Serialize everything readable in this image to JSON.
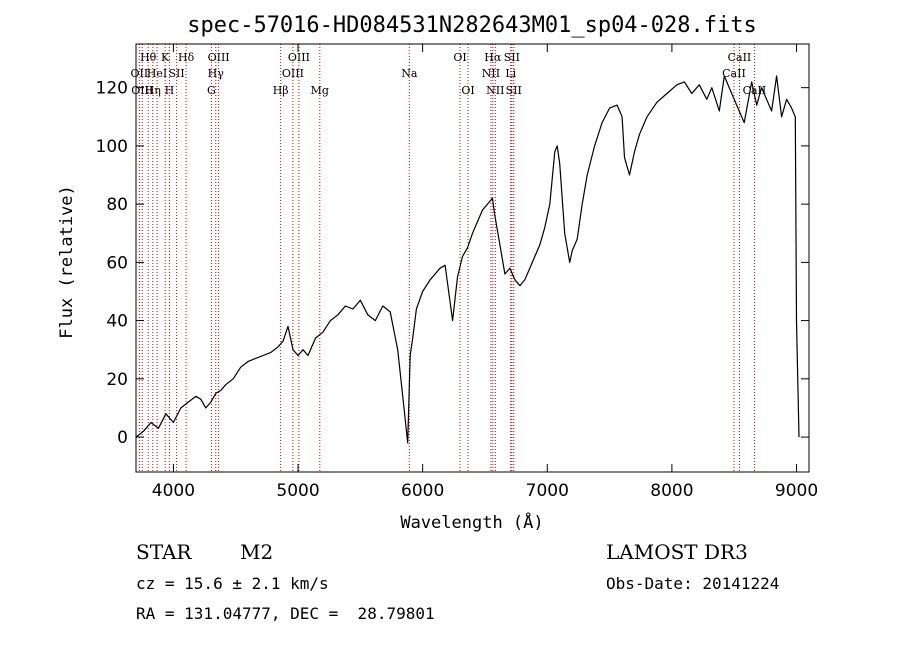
{
  "chart_data": {
    "type": "line",
    "title": "spec-57016-HD084531N282643M01_sp04-028.fits",
    "xlabel": "Wavelength (Å)",
    "ylabel": "Flux (relative)",
    "xlim": [
      3700,
      9100
    ],
    "ylim": [
      -12,
      135
    ],
    "xticks": [
      4000,
      5000,
      6000,
      7000,
      8000,
      9000
    ],
    "yticks": [
      0,
      20,
      40,
      60,
      80,
      100,
      120
    ],
    "line_color": "#000000",
    "marker_color": "#cc0000",
    "series": [
      {
        "name": "spectrum",
        "x": [
          3700,
          3760,
          3820,
          3880,
          3940,
          4000,
          4060,
          4120,
          4180,
          4220,
          4260,
          4300,
          4340,
          4380,
          4420,
          4480,
          4540,
          4600,
          4660,
          4720,
          4780,
          4840,
          4880,
          4920,
          4960,
          5000,
          5040,
          5080,
          5140,
          5200,
          5260,
          5320,
          5380,
          5440,
          5500,
          5560,
          5620,
          5680,
          5740,
          5800,
          5850,
          5880,
          5900,
          5920,
          5950,
          6000,
          6060,
          6100,
          6140,
          6180,
          6240,
          6280,
          6320,
          6360,
          6400,
          6440,
          6480,
          6520,
          6560,
          6580,
          6620,
          6660,
          6700,
          6740,
          6780,
          6820,
          6860,
          6900,
          6940,
          6980,
          7020,
          7060,
          7080,
          7100,
          7140,
          7180,
          7200,
          7240,
          7280,
          7320,
          7380,
          7440,
          7500,
          7560,
          7600,
          7620,
          7660,
          7700,
          7740,
          7800,
          7880,
          7960,
          8040,
          8100,
          8160,
          8220,
          8280,
          8320,
          8380,
          8420,
          8480,
          8540,
          8580,
          8640,
          8680,
          8720,
          8760,
          8800,
          8840,
          8880,
          8920,
          8960,
          8990,
          9000,
          9020
        ],
        "values": [
          0,
          2,
          5,
          3,
          8,
          5,
          10,
          12,
          14,
          13,
          10,
          12,
          15,
          16,
          18,
          20,
          24,
          26,
          27,
          28,
          29,
          31,
          33,
          38,
          30,
          28,
          30,
          28,
          34,
          36,
          40,
          42,
          45,
          44,
          47,
          42,
          40,
          45,
          43,
          30,
          10,
          -2,
          28,
          34,
          44,
          50,
          54,
          56,
          58,
          59,
          40,
          55,
          62,
          65,
          70,
          74,
          78,
          80,
          82,
          76,
          66,
          56,
          58,
          54,
          52,
          54,
          58,
          62,
          66,
          72,
          80,
          98,
          100,
          94,
          70,
          60,
          64,
          68,
          80,
          90,
          100,
          108,
          113,
          114,
          110,
          96,
          90,
          98,
          104,
          110,
          115,
          118,
          121,
          122,
          118,
          121,
          116,
          120,
          112,
          124,
          118,
          112,
          108,
          122,
          114,
          120,
          116,
          112,
          124,
          110,
          116,
          113,
          110,
          40,
          0
        ]
      }
    ],
    "emission_lines": [
      {
        "wavelength": 3727,
        "label": "OII",
        "row": 1
      },
      {
        "wavelength": 3750,
        "label": "OIII",
        "row": 2
      },
      {
        "wavelength": 3798,
        "label": "Hθ",
        "row": 0
      },
      {
        "wavelength": 3835,
        "label": "Hη",
        "row": 2
      },
      {
        "wavelength": 3869,
        "label": "HeI",
        "row": 1
      },
      {
        "wavelength": 3934,
        "label": "K",
        "row": 0
      },
      {
        "wavelength": 3968,
        "label": "H",
        "row": 2
      },
      {
        "wavelength": 4026,
        "label": "SII",
        "row": 1
      },
      {
        "wavelength": 4102,
        "label": "Hδ",
        "row": 0
      },
      {
        "wavelength": 4305,
        "label": "G",
        "row": 2
      },
      {
        "wavelength": 4340,
        "label": "Hγ",
        "row": 1
      },
      {
        "wavelength": 4363,
        "label": "OIII",
        "row": 0
      },
      {
        "wavelength": 4861,
        "label": "Hβ",
        "row": 2
      },
      {
        "wavelength": 4959,
        "label": "OIII",
        "row": 1
      },
      {
        "wavelength": 5007,
        "label": "OIII",
        "row": 0
      },
      {
        "wavelength": 5175,
        "label": "Mg",
        "row": 2
      },
      {
        "wavelength": 5893,
        "label": "Na",
        "row": 1
      },
      {
        "wavelength": 6300,
        "label": "OI",
        "row": 0
      },
      {
        "wavelength": 6364,
        "label": "OI",
        "row": 2
      },
      {
        "wavelength": 6548,
        "label": "NII",
        "row": 1
      },
      {
        "wavelength": 6563,
        "label": "Hα",
        "row": 0
      },
      {
        "wavelength": 6583,
        "label": "NII",
        "row": 2
      },
      {
        "wavelength": 6707,
        "label": "Li",
        "row": 1
      },
      {
        "wavelength": 6716,
        "label": "SII",
        "row": 0
      },
      {
        "wavelength": 6731,
        "label": "SII",
        "row": 2
      },
      {
        "wavelength": 8498,
        "label": "CaII",
        "row": 1
      },
      {
        "wavelength": 8542,
        "label": "CaII",
        "row": 0
      },
      {
        "wavelength": 8662,
        "label": "CaII",
        "row": 2
      }
    ]
  },
  "info": {
    "object_type": "STAR",
    "subclass": "M2",
    "survey": "LAMOST DR3",
    "cz": "cz = 15.6 ± 2.1 km/s",
    "obs_date": "Obs-Date: 20141224",
    "radec": "RA = 131.04777, DEC =  28.79801"
  }
}
